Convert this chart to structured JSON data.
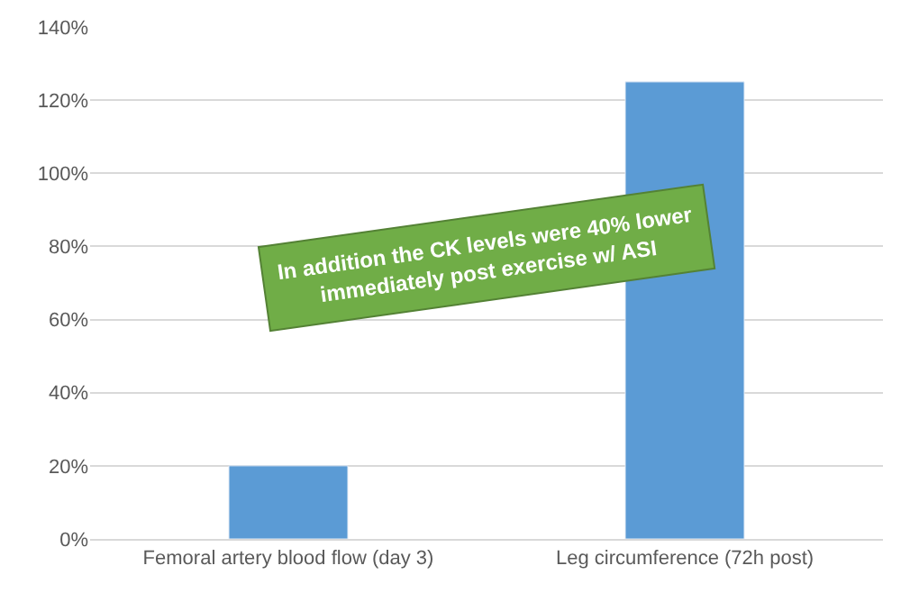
{
  "chart_data": {
    "type": "bar",
    "categories": [
      "Femoral artery blood flow (day 3)",
      "Leg circumference (72h post)"
    ],
    "values": [
      20,
      125
    ],
    "color": "#5b9bd5",
    "ylim": [
      0,
      140
    ],
    "yticks": [
      {
        "value": 0,
        "label": "0%"
      },
      {
        "value": 20,
        "label": "20%"
      },
      {
        "value": 40,
        "label": "40%"
      },
      {
        "value": 60,
        "label": "60%"
      },
      {
        "value": 80,
        "label": "80%"
      },
      {
        "value": 100,
        "label": "100%"
      },
      {
        "value": 120,
        "label": "120%"
      },
      {
        "value": 140,
        "label": "140%"
      }
    ],
    "grid": "y",
    "annotations": [
      "In addition the CK levels were 40% lower\nimmediately post exercise w/ ASI"
    ]
  }
}
